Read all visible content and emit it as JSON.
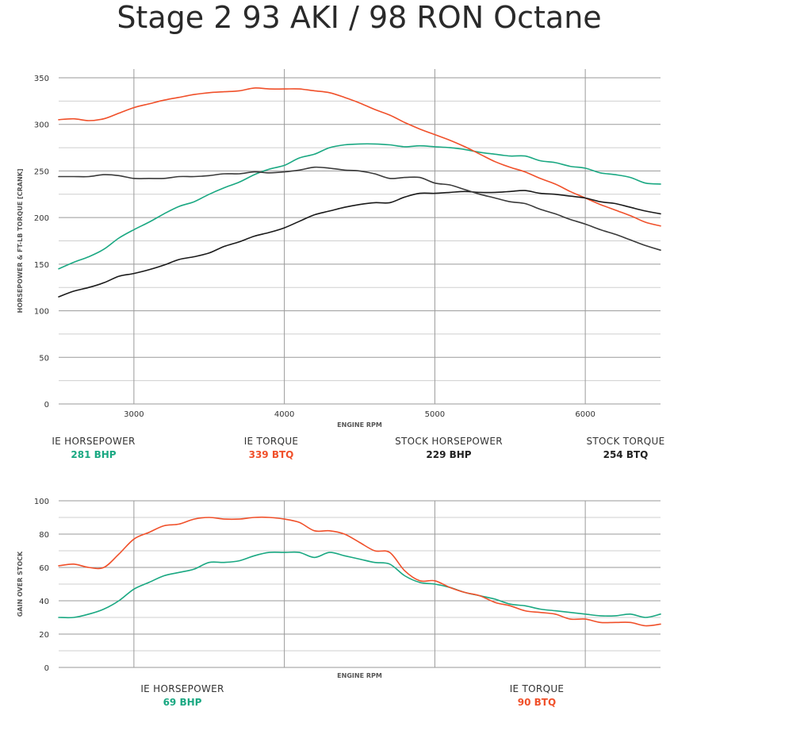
{
  "page": {
    "title": "Stage 2 93 AKI / 98 RON Octane"
  },
  "colors": {
    "ie_horsepower": "#1aa882",
    "ie_torque": "#f0502a",
    "stock_horsepower": "#1a1a1a",
    "stock_torque": "#3a3a3a",
    "grid_major": "#9a9a9a",
    "grid_minor": "#cfcfcf"
  },
  "summary1": [
    {
      "label": "IE HORSEPOWER",
      "value": "281 BHP",
      "color": "#1aa882"
    },
    {
      "label": "IE TORQUE",
      "value": "339 BTQ",
      "color": "#f0502a"
    },
    {
      "label": "STOCK HORSEPOWER",
      "value": "229 BHP",
      "color": "#222222"
    },
    {
      "label": "STOCK TORQUE",
      "value": "254 BTQ",
      "color": "#222222"
    }
  ],
  "summary2": [
    {
      "label": "IE HORSEPOWER",
      "value": "69 BHP",
      "color": "#1aa882"
    },
    {
      "label": "IE TORQUE",
      "value": "90 BTQ",
      "color": "#f0502a"
    }
  ],
  "chart_data": [
    {
      "type": "line",
      "xlabel": "ENGINE RPM",
      "ylabel": "HORSEPOWER & FT-LB TORQUE [CRANK]",
      "xlim": [
        2500,
        6500
      ],
      "ylim": [
        0,
        350
      ],
      "xticks": [
        3000,
        4000,
        5000,
        6000
      ],
      "yticks": [
        0,
        50,
        100,
        150,
        200,
        250,
        300,
        350
      ],
      "grid": true,
      "series": [
        {
          "key": "ie_hp",
          "color": "#1aa882",
          "x": [
            2500,
            2600,
            2700,
            2800,
            2900,
            3000,
            3100,
            3200,
            3300,
            3400,
            3500,
            3600,
            3700,
            3800,
            3900,
            4000,
            4100,
            4200,
            4300,
            4400,
            4500,
            4600,
            4700,
            4800,
            4900,
            5000,
            5100,
            5200,
            5300,
            5400,
            5500,
            5600,
            5700,
            5800,
            5900,
            6000,
            6100,
            6200,
            6300,
            6400,
            6500
          ],
          "y": [
            145,
            152,
            158,
            166,
            178,
            187,
            195,
            204,
            212,
            217,
            225,
            232,
            238,
            246,
            252,
            256,
            264,
            268,
            275,
            278,
            279,
            279,
            278,
            276,
            277,
            276,
            275,
            273,
            270,
            268,
            266,
            266,
            261,
            259,
            255,
            253,
            248,
            246,
            243,
            237,
            236
          ]
        },
        {
          "key": "ie_tq",
          "color": "#f0502a",
          "x": [
            2500,
            2600,
            2700,
            2800,
            2900,
            3000,
            3100,
            3200,
            3300,
            3400,
            3500,
            3600,
            3700,
            3800,
            3900,
            4000,
            4100,
            4200,
            4300,
            4400,
            4500,
            4600,
            4700,
            4800,
            4900,
            5000,
            5100,
            5200,
            5300,
            5400,
            5500,
            5600,
            5700,
            5800,
            5900,
            6000,
            6100,
            6200,
            6300,
            6400,
            6500
          ],
          "y": [
            305,
            306,
            304,
            306,
            312,
            318,
            322,
            326,
            329,
            332,
            334,
            335,
            336,
            339,
            338,
            338,
            338,
            336,
            334,
            329,
            323,
            316,
            310,
            302,
            295,
            289,
            283,
            276,
            268,
            260,
            254,
            249,
            242,
            236,
            228,
            221,
            214,
            208,
            202,
            195,
            191
          ]
        },
        {
          "key": "stock_hp",
          "color": "#1a1a1a",
          "x": [
            2500,
            2600,
            2700,
            2800,
            2900,
            3000,
            3100,
            3200,
            3300,
            3400,
            3500,
            3600,
            3700,
            3800,
            3900,
            4000,
            4100,
            4200,
            4300,
            4400,
            4500,
            4600,
            4700,
            4800,
            4900,
            5000,
            5100,
            5200,
            5300,
            5400,
            5500,
            5600,
            5700,
            5800,
            5900,
            6000,
            6100,
            6200,
            6300,
            6400,
            6500
          ],
          "y": [
            115,
            121,
            125,
            130,
            137,
            140,
            144,
            149,
            155,
            158,
            162,
            169,
            174,
            180,
            184,
            189,
            196,
            203,
            207,
            211,
            214,
            216,
            216,
            222,
            226,
            226,
            227,
            228,
            227,
            227,
            228,
            229,
            226,
            225,
            223,
            221,
            217,
            215,
            211,
            207,
            204
          ]
        },
        {
          "key": "stock_tq",
          "color": "#3a3a3a",
          "x": [
            2500,
            2600,
            2700,
            2800,
            2900,
            3000,
            3100,
            3200,
            3300,
            3400,
            3500,
            3600,
            3700,
            3800,
            3900,
            4000,
            4100,
            4200,
            4300,
            4400,
            4500,
            4600,
            4700,
            4800,
            4900,
            5000,
            5100,
            5200,
            5300,
            5400,
            5500,
            5600,
            5700,
            5800,
            5900,
            6000,
            6100,
            6200,
            6300,
            6400,
            6500
          ],
          "y": [
            244,
            244,
            244,
            246,
            245,
            242,
            242,
            242,
            244,
            244,
            245,
            247,
            247,
            249,
            248,
            249,
            251,
            254,
            253,
            251,
            250,
            247,
            242,
            243,
            243,
            237,
            235,
            230,
            225,
            221,
            217,
            215,
            209,
            204,
            198,
            193,
            187,
            182,
            176,
            170,
            165
          ]
        }
      ]
    },
    {
      "type": "line",
      "xlabel": "ENGINE RPM",
      "ylabel": "GAIN OVER STOCK",
      "xlim": [
        2500,
        6500
      ],
      "ylim": [
        0,
        100
      ],
      "xticks": [
        3000,
        4000,
        5000,
        6000
      ],
      "yticks": [
        0,
        20,
        40,
        60,
        80,
        100
      ],
      "grid": true,
      "series": [
        {
          "key": "ie_hp_gain",
          "color": "#1aa882",
          "x": [
            2500,
            2600,
            2700,
            2800,
            2900,
            3000,
            3100,
            3200,
            3300,
            3400,
            3500,
            3600,
            3700,
            3800,
            3900,
            4000,
            4100,
            4200,
            4300,
            4400,
            4500,
            4600,
            4700,
            4800,
            4900,
            5000,
            5100,
            5200,
            5300,
            5400,
            5500,
            5600,
            5700,
            5800,
            5900,
            6000,
            6100,
            6200,
            6300,
            6400,
            6500
          ],
          "y": [
            30,
            30,
            32,
            35,
            40,
            47,
            51,
            55,
            57,
            59,
            63,
            63,
            64,
            67,
            69,
            69,
            69,
            66,
            69,
            67,
            65,
            63,
            62,
            55,
            51,
            50,
            48,
            45,
            43,
            41,
            38,
            37,
            35,
            34,
            33,
            32,
            31,
            31,
            32,
            30,
            32
          ]
        },
        {
          "key": "ie_tq_gain",
          "color": "#f0502a",
          "x": [
            2500,
            2600,
            2700,
            2800,
            2900,
            3000,
            3100,
            3200,
            3300,
            3400,
            3500,
            3600,
            3700,
            3800,
            3900,
            4000,
            4100,
            4200,
            4300,
            4400,
            4500,
            4600,
            4700,
            4800,
            4900,
            5000,
            5100,
            5200,
            5300,
            5400,
            5500,
            5600,
            5700,
            5800,
            5900,
            6000,
            6100,
            6200,
            6300,
            6400,
            6500
          ],
          "y": [
            61,
            62,
            60,
            60,
            68,
            77,
            81,
            85,
            86,
            89,
            90,
            89,
            89,
            90,
            90,
            89,
            87,
            82,
            82,
            80,
            75,
            70,
            69,
            58,
            52,
            52,
            48,
            45,
            43,
            39,
            37,
            34,
            33,
            32,
            29,
            29,
            27,
            27,
            27,
            25,
            26
          ]
        }
      ]
    }
  ]
}
